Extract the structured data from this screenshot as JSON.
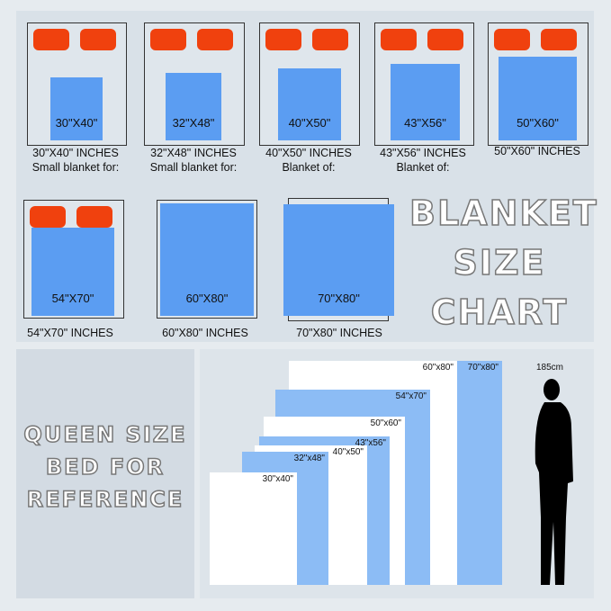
{
  "title_lines": [
    "BLANKET",
    "SIZE",
    "CHART"
  ],
  "reference_lines": [
    "QUEEN SIZE",
    "BED FOR",
    "REFERENCE"
  ],
  "sizes": [
    {
      "label": "30\"X40\"",
      "caption": "30\"X40\"  INCHES",
      "sub": "Small blanket for:"
    },
    {
      "label": "32\"X48\"",
      "caption": "32\"X48\"  INCHES",
      "sub": "Small blanket for:"
    },
    {
      "label": "40\"X50\"",
      "caption": "40\"X50\"  INCHES",
      "sub": "Blanket of:"
    },
    {
      "label": "43\"X56\"",
      "caption": "43\"X56\"  INCHES",
      "sub": "Blanket of:"
    },
    {
      "label": "50\"X60\"",
      "caption": "50\"X60\"  INCHES",
      "sub": ""
    },
    {
      "label": "54\"X70\"",
      "caption": "54\"X70\"  INCHES",
      "sub": ""
    },
    {
      "label": "60\"X80\"",
      "caption": "60\"X80\"  INCHES",
      "sub": ""
    },
    {
      "label": "70\"X80\"",
      "caption": "70\"X80\"  INCHES",
      "sub": ""
    }
  ],
  "comparison": [
    {
      "label": "60\"x80\"",
      "color": "#ffffff"
    },
    {
      "label": "70\"x80\"",
      "color": "#8cbcf5"
    },
    {
      "label": "54\"x70\"",
      "color": "#8cbcf5"
    },
    {
      "label": "50\"x60\"",
      "color": "#ffffff"
    },
    {
      "label": "43\"x56\"",
      "color": "#8cbcf5"
    },
    {
      "label": "40\"x50\"",
      "color": "#ffffff"
    },
    {
      "label": "32\"x48\"",
      "color": "#8cbcf5"
    },
    {
      "label": "30\"x40\"",
      "color": "#ffffff"
    }
  ],
  "person_height": "185cm",
  "colors": {
    "pillow": "#f0410e",
    "blanket": "#5b9df2"
  }
}
